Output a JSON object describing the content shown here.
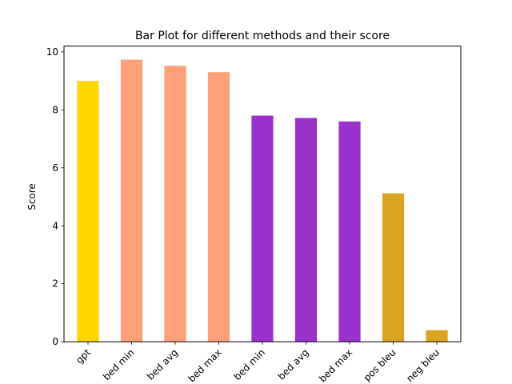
{
  "chart_data": {
    "type": "bar",
    "title": "Bar Plot for different methods and their score",
    "xlabel": "",
    "ylabel": "Score",
    "ylim": [
      0,
      10.2
    ],
    "yticks": [
      0,
      2,
      4,
      6,
      8,
      10
    ],
    "grid": false,
    "legend": "none",
    "categories": [
      "gpt",
      "bed min",
      "bed avg",
      "bed max",
      "bed min",
      "bed avg",
      "bed max",
      "pos bleu",
      "neg bleu"
    ],
    "values": [
      9.0,
      9.73,
      9.52,
      9.3,
      7.8,
      7.72,
      7.6,
      5.12,
      0.4
    ],
    "colors": [
      "#FFD700",
      "#FFA07A",
      "#FFA07A",
      "#FFA07A",
      "#9932CC",
      "#9932CC",
      "#9932CC",
      "#DAA520",
      "#DAA520"
    ]
  }
}
